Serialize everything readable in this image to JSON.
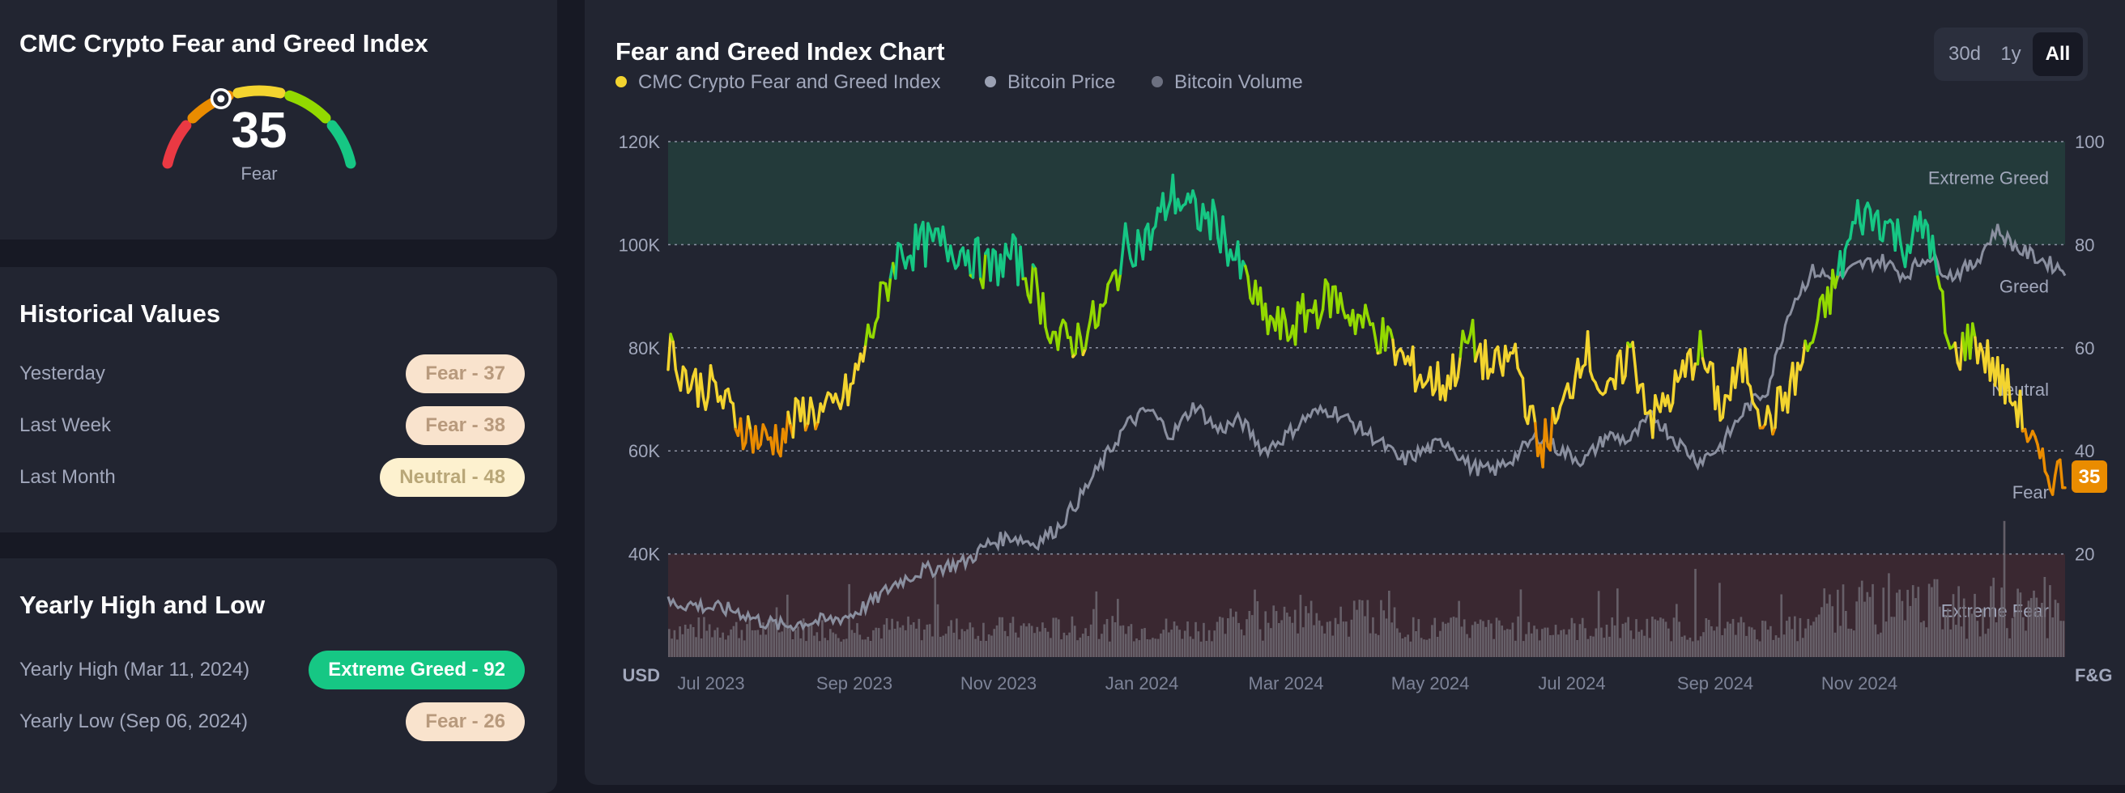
{
  "gauge": {
    "title": "CMC Crypto Fear and Greed Index",
    "value": 35,
    "value_text": "35",
    "label": "Fear",
    "colors": [
      "#ea3943",
      "#ea8c00",
      "#f3d42f",
      "#93d900",
      "#16c784"
    ]
  },
  "historical": {
    "title": "Historical Values",
    "rows": [
      {
        "label": "Yesterday",
        "badge": "Fear - 37",
        "kind": "fear"
      },
      {
        "label": "Last Week",
        "badge": "Fear - 38",
        "kind": "fear"
      },
      {
        "label": "Last Month",
        "badge": "Neutral - 48",
        "kind": "neutral"
      }
    ]
  },
  "yearly": {
    "title": "Yearly High and Low",
    "high_label": "Yearly High",
    "high_date": "(Mar 11, 2024)",
    "high_badge": "Extreme Greed - 92",
    "low_label": "Yearly Low",
    "low_date": "(Sep 06, 2024)",
    "low_badge": "Fear - 26"
  },
  "chart": {
    "title": "Fear and Greed Index Chart",
    "ranges": [
      "30d",
      "1y",
      "All"
    ],
    "active_range": "All",
    "legend": [
      {
        "label": "CMC Crypto Fear and Greed Index",
        "color": "#f3d42f"
      },
      {
        "label": "Bitcoin Price",
        "color": "#9ba1b3"
      },
      {
        "label": "Bitcoin Volume",
        "color": "#6c7080"
      }
    ]
  },
  "chart_data": {
    "type": "line",
    "title": "Fear and Greed Index Chart",
    "xlabel": "",
    "left_axis_label": "USD",
    "right_axis_label": "F&G",
    "x_ticks": [
      "Jul 2023",
      "Sep 2023",
      "Nov 2023",
      "Jan 2024",
      "Mar 2024",
      "May 2024",
      "Jul 2024",
      "Sep 2024",
      "Nov 2024"
    ],
    "left_ticks": [
      "120K",
      "100K",
      "80K",
      "60K",
      "40K"
    ],
    "left_range": [
      20000,
      120000
    ],
    "right_ticks": [
      "100",
      "80",
      "60",
      "40",
      "20"
    ],
    "right_range": [
      0,
      100
    ],
    "zones": [
      {
        "label": "Extreme Greed",
        "from": 80,
        "to": 100
      },
      {
        "label": "Greed",
        "from": 60,
        "to": 80
      },
      {
        "label": "Neutral",
        "from": 40,
        "to": 60
      },
      {
        "label": "Fear",
        "from": 20,
        "to": 40
      },
      {
        "label": "Extreme Fear",
        "from": 0,
        "to": 20
      }
    ],
    "current_badge": "35",
    "series": [
      {
        "name": "CMC Crypto Fear and Greed Index",
        "monthly": [
          60,
          53,
          52,
          46,
          42,
          43,
          48,
          47,
          52,
          65,
          78,
          80,
          80,
          79,
          75,
          78,
          72,
          61,
          62,
          67,
          80,
          81,
          90,
          86,
          84,
          75,
          66,
          63,
          67,
          70,
          66,
          63,
          58,
          54,
          53,
          62,
          55,
          59,
          40,
          47,
          61,
          49,
          60,
          46,
          52,
          60,
          48,
          57,
          45,
          52,
          62,
          73,
          86,
          85,
          80,
          84,
          58,
          62,
          55,
          48,
          36,
          35
        ]
      },
      {
        "name": "Bitcoin Price",
        "monthly": [
          30500,
          30200,
          29500,
          29000,
          27000,
          26000,
          26800,
          27000,
          28200,
          31000,
          34500,
          36600,
          37500,
          38500,
          42000,
          43500,
          42000,
          45000,
          51000,
          58000,
          65000,
          68000,
          63000,
          69000,
          64000,
          66000,
          60000,
          63000,
          67000,
          68000,
          65000,
          62000,
          58000,
          60000,
          62000,
          57000,
          56000,
          59000,
          63000,
          60000,
          58000,
          63000,
          62000,
          67000,
          62000,
          58000,
          61000,
          68000,
          72000,
          88000,
          95000,
          93000,
          96000,
          97000,
          94000,
          98000,
          94000,
          96000,
          103000,
          99000,
          97000,
          95000
        ]
      }
    ]
  }
}
